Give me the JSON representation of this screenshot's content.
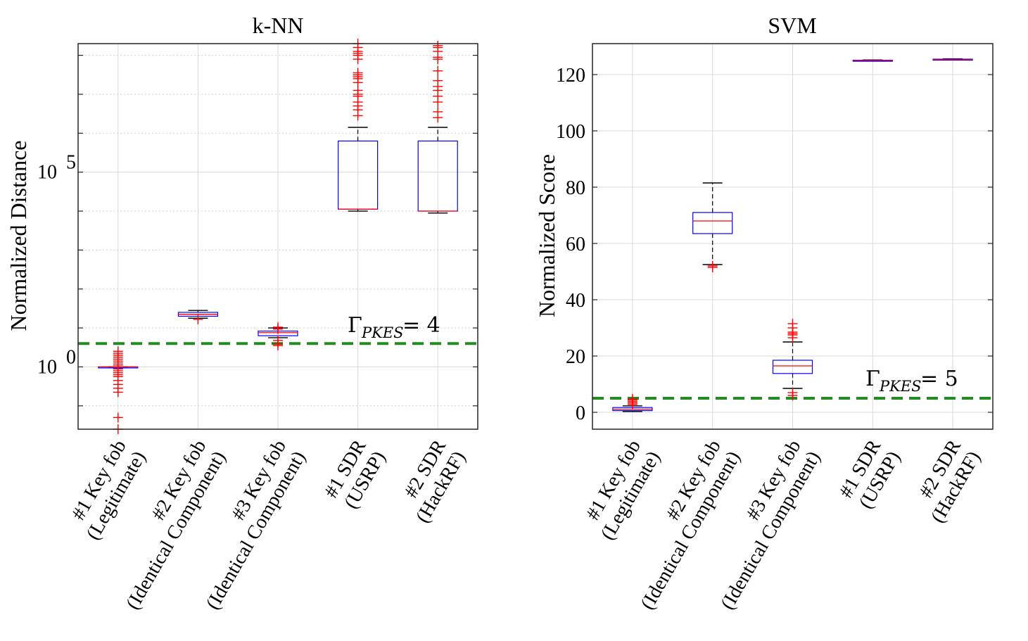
{
  "colors": {
    "box": "#0000ff",
    "median": "#ff0000",
    "outlier": "#ff0000",
    "threshold": "#228b22",
    "whisker": "#000000"
  },
  "chart_data": [
    {
      "type": "box",
      "title": "k-NN",
      "ylabel": "Normalized Distance",
      "yscale": "log",
      "ylim_log10": [
        -1.6,
        8.3
      ],
      "yticks": [
        {
          "value_log10": 0,
          "mantissa": "10",
          "exponent": "0"
        },
        {
          "value_log10": 5,
          "mantissa": "10",
          "exponent": "5"
        }
      ],
      "categories": [
        [
          "#1 Key fob",
          "(Legitimate)"
        ],
        [
          "#2 Key fob",
          "(Identical Component)"
        ],
        [
          "#3 Key fob",
          "(Identical Component)"
        ],
        [
          "#1 SDR",
          "(USRP)"
        ],
        [
          "#2 SDR",
          "(HackRF)"
        ]
      ],
      "threshold": {
        "value_log10": 0.6,
        "label_main": "Γ",
        "label_sub": "PKES",
        "label_rest": " = 4"
      },
      "boxes_log10": [
        {
          "whisker_low": 0,
          "q1": 0,
          "median": 0,
          "q3": 0,
          "whisker_high": 0,
          "outliers": [
            0.4,
            0.35,
            0.3,
            0.25,
            0.2,
            0.15,
            0.1,
            0.05,
            -0.05,
            -0.1,
            -0.15,
            -0.2,
            -0.25,
            -0.35,
            -0.45,
            -0.55,
            -0.65,
            -1.3,
            -1.6
          ]
        },
        {
          "whisker_low": 1.25,
          "q1": 1.3,
          "median": 1.35,
          "q3": 1.4,
          "whisker_high": 1.45,
          "outliers": [
            1.22
          ]
        },
        {
          "whisker_low": 0.75,
          "q1": 0.8,
          "median": 0.88,
          "q3": 0.92,
          "whisker_high": 1.0,
          "outliers": [
            1.02,
            0.97,
            0.68,
            0.6,
            0.55
          ]
        },
        {
          "whisker_low": 4.0,
          "q1": 4.05,
          "median": 4.05,
          "q3": 5.8,
          "whisker_high": 6.15,
          "outliers": [
            6.45,
            6.6,
            6.7,
            6.8,
            6.95,
            7.1,
            7.3,
            7.45,
            7.5,
            7.55,
            7.9,
            8.0,
            8.05,
            8.1,
            8.2,
            8.3,
            7.4,
            7.0
          ]
        },
        {
          "whisker_low": 3.95,
          "q1": 4.0,
          "median": 4.0,
          "q3": 5.8,
          "whisker_high": 6.15,
          "outliers": [
            6.4,
            6.55,
            6.8,
            7.1,
            7.2,
            7.6,
            7.9,
            7.95,
            8.1,
            8.2,
            8.25,
            7.35,
            6.95
          ]
        }
      ]
    },
    {
      "type": "box",
      "title": "SVM",
      "ylabel": "Normalized Score",
      "yscale": "linear",
      "ylim": [
        -6,
        131
      ],
      "yticks": [
        0,
        20,
        40,
        60,
        80,
        100,
        120
      ],
      "categories": [
        [
          "#1 Key fob",
          "(Legitimate)"
        ],
        [
          "#2 Key fob",
          "(Identical Component)"
        ],
        [
          "#3 Key fob",
          "(Identical Component)"
        ],
        [
          "#1 SDR",
          "(USRP)"
        ],
        [
          "#2 SDR",
          "(HackRF)"
        ]
      ],
      "threshold": {
        "value": 5,
        "label_main": "Γ",
        "label_sub": "PKES",
        "label_rest": " = 5"
      },
      "boxes": [
        {
          "whisker_low": 0.3,
          "q1": 0.6,
          "median": 1.1,
          "q3": 1.7,
          "whisker_high": 2.3,
          "outliers": [
            2.8,
            3.3,
            3.8,
            4.3,
            4.8
          ]
        },
        {
          "whisker_low": 52.5,
          "q1": 63.5,
          "median": 68,
          "q3": 71,
          "whisker_high": 81.5,
          "outliers": [
            51.5,
            52.0
          ]
        },
        {
          "whisker_low": 8.5,
          "q1": 13.8,
          "median": 16.5,
          "q3": 18.5,
          "whisker_high": 25,
          "outliers": [
            6.0,
            7.0,
            26.5,
            27.5,
            28.0,
            28.5,
            30.0,
            31.5
          ]
        },
        {
          "whisker_low": 124.8,
          "q1": 124.9,
          "median": 125.0,
          "q3": 125.1,
          "whisker_high": 125.2,
          "outliers": []
        },
        {
          "whisker_low": 125.2,
          "q1": 125.3,
          "median": 125.4,
          "q3": 125.5,
          "whisker_high": 125.6,
          "outliers": []
        }
      ]
    }
  ]
}
